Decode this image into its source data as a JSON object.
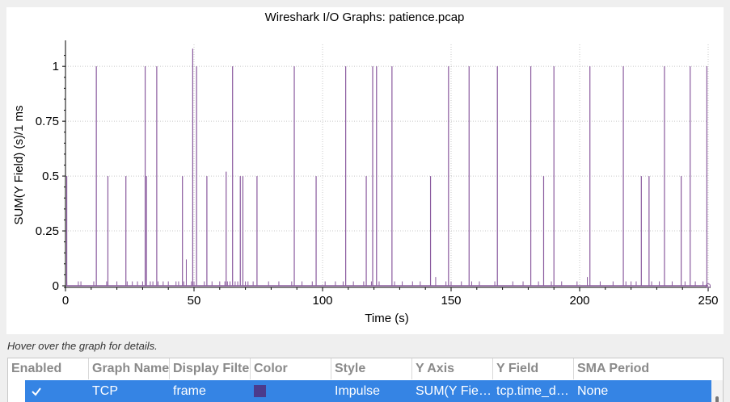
{
  "hover_hint": "Hover over the graph for details.",
  "table": {
    "headers": [
      "Enabled",
      "Graph Name",
      "Display Filte",
      "Color",
      "Style",
      "Y Axis",
      "Y Field",
      "SMA Period"
    ],
    "row": {
      "enabled": true,
      "graph_name": "TCP",
      "display_filter": "frame",
      "color": "#4b3b8c",
      "style": "Impulse",
      "y_axis": "SUM(Y Fie…",
      "y_field": "tcp.time_d…",
      "sma_period": "None"
    },
    "selected_color": "#3584e4"
  },
  "chart_data": {
    "type": "impulse",
    "title": "Wireshark I/O Graphs: patience.pcap",
    "xlabel": "Time (s)",
    "ylabel": "SUM(Y Field) (s)/1 ms",
    "xlim": [
      0,
      250
    ],
    "ylim": [
      0,
      1.1
    ],
    "xticks": [
      0,
      50,
      100,
      150,
      200,
      250
    ],
    "xtick_labels": [
      "0",
      "50",
      "100",
      "150",
      "200",
      "250"
    ],
    "yticks": [
      0,
      0.25,
      0.5,
      0.75,
      1
    ],
    "ytick_labels": [
      "0",
      "0.25",
      "0.5",
      "0.75",
      "1"
    ],
    "grid": true,
    "series": [
      {
        "name": "TCP",
        "color": "#8a5a9e",
        "x": [
          0.5,
          12,
          16.5,
          23.5,
          31,
          31.5,
          35.5,
          45.5,
          49.5,
          51,
          55,
          62.5,
          65,
          68,
          69,
          74.5,
          89,
          97.5,
          109,
          117,
          119.5,
          121,
          127,
          142,
          149,
          157,
          168,
          181,
          186,
          190,
          204,
          217,
          224,
          227,
          233,
          239.5,
          243,
          249.5
        ],
        "y": [
          0.5,
          1.0,
          0.5,
          0.5,
          1.0,
          0.5,
          1.0,
          0.5,
          1.08,
          1.0,
          0.5,
          0.52,
          1.0,
          0.5,
          0.5,
          0.5,
          1.0,
          0.5,
          1.0,
          0.5,
          1.0,
          1.0,
          1.0,
          0.5,
          1.0,
          1.0,
          1.0,
          1.0,
          0.5,
          1.0,
          1.0,
          1.0,
          0.5,
          0.5,
          1.0,
          0.5,
          1.0,
          1.0
        ]
      }
    ],
    "small_impulses": {
      "x": [
        0.5,
        5,
        6,
        11,
        16,
        20,
        24,
        26,
        28,
        30,
        33,
        34,
        36,
        38,
        40,
        43,
        44,
        46,
        47,
        49,
        50,
        54,
        57,
        60,
        62,
        63,
        64,
        66,
        67,
        70,
        71,
        73,
        79,
        83,
        88,
        92,
        96,
        101,
        105,
        108,
        112,
        116,
        119,
        122,
        128,
        131,
        135,
        138,
        144,
        148,
        150,
        154,
        158,
        161,
        167,
        174,
        178,
        184,
        189,
        193,
        199,
        203,
        208,
        213,
        218,
        220,
        222,
        228,
        231,
        236,
        241,
        245,
        248
      ],
      "y": [
        0.02,
        0.02,
        0.02,
        0.02,
        0.02,
        0.02,
        0.02,
        0.02,
        0.02,
        0.02,
        0.02,
        0.02,
        0.02,
        0.02,
        0.02,
        0.02,
        0.02,
        0.02,
        0.12,
        0.02,
        0.02,
        0.02,
        0.02,
        0.02,
        0.02,
        0.02,
        0.02,
        0.02,
        0.02,
        0.02,
        0.02,
        0.02,
        0.02,
        0.02,
        0.02,
        0.02,
        0.02,
        0.02,
        0.02,
        0.02,
        0.02,
        0.02,
        0.02,
        0.02,
        0.02,
        0.02,
        0.02,
        0.02,
        0.04,
        0.02,
        0.02,
        0.02,
        0.02,
        0.02,
        0.02,
        0.02,
        0.02,
        0.02,
        0.02,
        0.02,
        0.02,
        0.04,
        0.02,
        0.02,
        0.02,
        0.02,
        0.02,
        0.02,
        0.02,
        0.02,
        0.02,
        0.02,
        0.02
      ]
    }
  }
}
